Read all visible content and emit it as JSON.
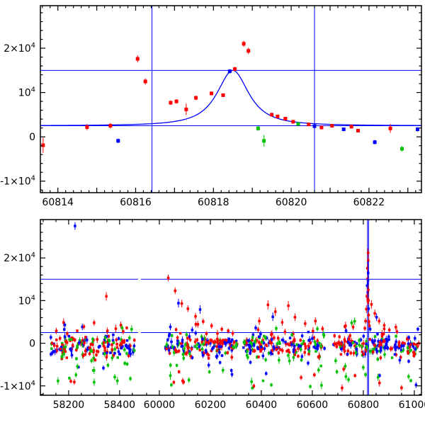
{
  "figure": {
    "background": "#ffffff",
    "frame_color": "#000000",
    "accent_line_color": "#0000ff"
  },
  "palette": {
    "r": "#ff0000",
    "g": "#00c000",
    "b": "#0000ff"
  },
  "chart_data": [
    {
      "name": "recent-light-curve",
      "type": "scatter",
      "x_range": [
        60813.55,
        60823.35
      ],
      "y_range": [
        -12600,
        29600
      ],
      "x_ticks": {
        "minor": 0.2,
        "major": 1
      },
      "x_labeled": [
        {
          "v": 60814,
          "text": "60814"
        },
        {
          "v": 60816,
          "text": "60816"
        },
        {
          "v": 60818,
          "text": "60818"
        },
        {
          "v": 60820,
          "text": "60820"
        },
        {
          "v": 60822,
          "text": "60822"
        }
      ],
      "y_ticks": {
        "minor": 2000,
        "major": 10000
      },
      "y_labeled": [
        {
          "v": -10000,
          "base": "-1×10",
          "sup": "4"
        },
        {
          "v": 0,
          "base": "0"
        },
        {
          "v": 10000,
          "base": "10",
          "sup": "4"
        },
        {
          "v": 20000,
          "base": "2×10",
          "sup": "4"
        }
      ],
      "hlines": [
        2500,
        15000
      ],
      "vlines": [
        60816.42,
        60820.6
      ],
      "model_curve": {
        "t0": 60818.5,
        "baseline": 2500,
        "peak": 15000,
        "width": 0.55,
        "power": 1.2
      },
      "marker_size": 5,
      "points": [
        [
          60813.62,
          -1900,
          1700,
          "r"
        ],
        [
          60814.75,
          2200,
          700,
          "r"
        ],
        [
          60815.35,
          2500,
          600,
          "r"
        ],
        [
          60815.55,
          -900,
          500,
          "b"
        ],
        [
          60816.05,
          17600,
          800,
          "r"
        ],
        [
          60816.25,
          12500,
          700,
          "r"
        ],
        [
          60816.9,
          7700,
          500,
          "r"
        ],
        [
          60817.05,
          8000,
          500,
          "r"
        ],
        [
          60817.3,
          6200,
          1300,
          "r"
        ],
        [
          60817.55,
          8800,
          500,
          "r"
        ],
        [
          60817.95,
          9800,
          400,
          "r"
        ],
        [
          60818.25,
          9400,
          400,
          "r"
        ],
        [
          60818.42,
          14800,
          500,
          "b"
        ],
        [
          60818.55,
          15300,
          500,
          "r"
        ],
        [
          60818.78,
          21000,
          700,
          "r"
        ],
        [
          60818.9,
          19400,
          700,
          "r"
        ],
        [
          60819.15,
          1900,
          500,
          "g"
        ],
        [
          60819.3,
          -900,
          1300,
          "g"
        ],
        [
          60819.5,
          5000,
          400,
          "r"
        ],
        [
          60819.65,
          4600,
          400,
          "r"
        ],
        [
          60819.85,
          4100,
          400,
          "r"
        ],
        [
          60820.05,
          3400,
          400,
          "r"
        ],
        [
          60820.18,
          2900,
          400,
          "g"
        ],
        [
          60820.45,
          2800,
          400,
          "r"
        ],
        [
          60820.6,
          2400,
          700,
          "b"
        ],
        [
          60820.78,
          2100,
          400,
          "r"
        ],
        [
          60821.05,
          2500,
          400,
          "r"
        ],
        [
          60821.35,
          1700,
          400,
          "b"
        ],
        [
          60821.55,
          2300,
          400,
          "r"
        ],
        [
          60821.72,
          1400,
          400,
          "r"
        ],
        [
          60822.15,
          -1200,
          500,
          "b"
        ],
        [
          60822.55,
          1900,
          1000,
          "r"
        ],
        [
          60822.85,
          -2700,
          600,
          "g"
        ],
        [
          60823.25,
          1700,
          500,
          "b"
        ]
      ]
    },
    {
      "name": "full-light-curve",
      "type": "scatter",
      "x_segments": [
        {
          "range": [
            58089,
            58478
          ],
          "frac": [
            0,
            0.26
          ]
        },
        {
          "range": [
            59922,
            61028
          ],
          "frac": [
            0.26,
            1
          ]
        }
      ],
      "y_range": [
        -12200,
        29000
      ],
      "x_ticks": {
        "minor": 50,
        "major": 200
      },
      "x_labeled": [
        {
          "v": 58200,
          "text": "58200"
        },
        {
          "v": 58400,
          "text": "58400"
        },
        {
          "v": 60000,
          "text": "60000"
        },
        {
          "v": 60200,
          "text": "60200"
        },
        {
          "v": 60400,
          "text": "60400"
        },
        {
          "v": 60600,
          "text": "60600"
        },
        {
          "v": 60800,
          "text": "60800"
        },
        {
          "v": 61000,
          "text": "61000"
        }
      ],
      "y_ticks": {
        "minor": 2000,
        "major": 10000
      },
      "y_labeled": [
        {
          "v": -10000,
          "base": "-1×10",
          "sup": "4"
        },
        {
          "v": 0,
          "base": "0"
        },
        {
          "v": 10000,
          "base": "10",
          "sup": "4"
        },
        {
          "v": 20000,
          "base": "2×10",
          "sup": "4"
        }
      ],
      "hlines": [
        2500,
        15000
      ],
      "vlines": [
        60816.42,
        60820.6
      ],
      "seed": 1234,
      "marker_size": 3.5,
      "noise_clusters": [
        {
          "x": [
            58128,
            58462
          ],
          "n": 170,
          "y_center": -600,
          "y_sigma": 1300,
          "weights": {
            "r": 0.42,
            "b": 0.4,
            "g": 0.18
          }
        },
        {
          "x": [
            60022,
            60305
          ],
          "n": 150,
          "y_center": -600,
          "y_sigma": 1200,
          "weights": {
            "r": 0.42,
            "b": 0.4,
            "g": 0.18
          }
        },
        {
          "x": [
            60330,
            60652
          ],
          "n": 160,
          "y_center": -650,
          "y_sigma": 1300,
          "weights": {
            "r": 0.42,
            "b": 0.4,
            "g": 0.18
          }
        },
        {
          "x": [
            60682,
            61020
          ],
          "n": 175,
          "y_center": -550,
          "y_sigma": 1200,
          "weights": {
            "r": 0.4,
            "b": 0.42,
            "g": 0.18
          }
        }
      ],
      "tails": [
        {
          "x": [
            58140,
            58450
          ],
          "n": 26,
          "y": [
            -9800,
            -2200
          ],
          "weights": {
            "g": 0.55,
            "r": 0.28,
            "b": 0.17
          }
        },
        {
          "x": [
            60030,
            60300
          ],
          "n": 22,
          "y": [
            -9800,
            -2200
          ],
          "weights": {
            "g": 0.55,
            "r": 0.28,
            "b": 0.17
          }
        },
        {
          "x": [
            60340,
            60645
          ],
          "n": 26,
          "y": [
            -10800,
            -2200
          ],
          "weights": {
            "g": 0.5,
            "r": 0.3,
            "b": 0.2
          }
        },
        {
          "x": [
            60690,
            61015
          ],
          "n": 26,
          "y": [
            -10500,
            -2200
          ],
          "weights": {
            "g": 0.5,
            "r": 0.3,
            "b": 0.2
          }
        },
        {
          "x": [
            58140,
            58450
          ],
          "n": 8,
          "y": [
            2000,
            5200
          ],
          "weights": {
            "r": 0.6,
            "b": 0.25,
            "g": 0.15
          }
        },
        {
          "x": [
            60040,
            60300
          ],
          "n": 6,
          "y": [
            2000,
            4500
          ],
          "weights": {
            "r": 0.6,
            "b": 0.25,
            "g": 0.15
          }
        },
        {
          "x": [
            60340,
            60645
          ],
          "n": 8,
          "y": [
            2000,
            4800
          ],
          "weights": {
            "r": 0.6,
            "b": 0.25,
            "g": 0.15
          }
        },
        {
          "x": [
            60690,
            61015
          ],
          "n": 8,
          "y": [
            2000,
            5200
          ],
          "weights": {
            "r": 0.6,
            "b": 0.25,
            "g": 0.15
          }
        }
      ],
      "points": [
        [
          58225,
          27500,
          900,
          "b"
        ],
        [
          58348,
          11000,
          1000,
          "r"
        ],
        [
          58300,
          4800,
          700,
          "r"
        ],
        [
          58185,
          4300,
          600,
          "b"
        ],
        [
          58260,
          3900,
          600,
          "r"
        ],
        [
          58410,
          3600,
          700,
          "g"
        ],
        [
          60035,
          15300,
          800,
          "r"
        ],
        [
          60062,
          12300,
          800,
          "r"
        ],
        [
          60088,
          9300,
          900,
          "r"
        ],
        [
          60075,
          9400,
          1000,
          "b"
        ],
        [
          60112,
          8100,
          800,
          "r"
        ],
        [
          60142,
          6300,
          800,
          "r"
        ],
        [
          60172,
          5100,
          700,
          "r"
        ],
        [
          60205,
          4100,
          700,
          "r"
        ],
        [
          60245,
          3300,
          600,
          "r"
        ],
        [
          60160,
          7900,
          1000,
          "b"
        ],
        [
          60270,
          2900,
          600,
          "r"
        ],
        [
          60392,
          5200,
          900,
          "r"
        ],
        [
          60426,
          9000,
          1100,
          "r"
        ],
        [
          60455,
          7400,
          1000,
          "r"
        ],
        [
          60482,
          4900,
          800,
          "r"
        ],
        [
          60506,
          8800,
          1100,
          "r"
        ],
        [
          60532,
          6100,
          900,
          "r"
        ],
        [
          60572,
          4600,
          800,
          "r"
        ],
        [
          60612,
          5200,
          900,
          "r"
        ],
        [
          60445,
          6200,
          1000,
          "b"
        ],
        [
          60378,
          3600,
          700,
          "b"
        ],
        [
          60640,
          3400,
          700,
          "r"
        ],
        [
          60760,
          3800,
          700,
          "r"
        ],
        [
          60806,
          3500,
          600,
          "r"
        ],
        [
          60809,
          5200,
          700,
          "r"
        ],
        [
          60812,
          8000,
          900,
          "r"
        ],
        [
          60814,
          11000,
          1000,
          "r"
        ],
        [
          60815,
          13500,
          1000,
          "b"
        ],
        [
          60816,
          17600,
          1000,
          "r"
        ],
        [
          60817,
          15100,
          900,
          "r"
        ],
        [
          60817.5,
          12000,
          2600,
          "b"
        ],
        [
          60818,
          9800,
          800,
          "r"
        ],
        [
          60818.5,
          14800,
          900,
          "b"
        ],
        [
          60818.7,
          21200,
          1000,
          "r"
        ],
        [
          60818.9,
          19400,
          1000,
          "r"
        ],
        [
          60819,
          16500,
          2800,
          "b"
        ],
        [
          60819.5,
          12500,
          1100,
          "r"
        ],
        [
          60820,
          10100,
          1000,
          "r"
        ],
        [
          60820.5,
          8100,
          900,
          "b"
        ],
        [
          60821,
          6600,
          800,
          "r"
        ],
        [
          60822,
          5100,
          700,
          "r"
        ],
        [
          60824,
          4100,
          700,
          "r"
        ],
        [
          60827,
          3300,
          600,
          "b"
        ],
        [
          60832,
          9100,
          1000,
          "r"
        ],
        [
          60845,
          7000,
          900,
          "r"
        ],
        [
          60852,
          6100,
          900,
          "b"
        ],
        [
          60862,
          5200,
          800,
          "r"
        ],
        [
          60882,
          4200,
          700,
          "r"
        ],
        [
          60902,
          3100,
          600,
          "r"
        ],
        [
          60932,
          2700,
          600,
          "r"
        ]
      ]
    }
  ]
}
